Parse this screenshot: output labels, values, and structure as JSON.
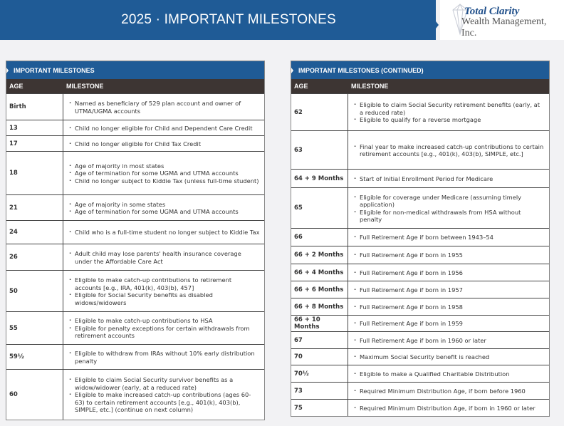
{
  "header": {
    "title": "2025 · IMPORTANT MILESTONES",
    "logo_line1": "Total Clarity",
    "logo_line2": "Wealth Management, Inc."
  },
  "left": {
    "title": "IMPORTANT MILESTONES",
    "col_age": "AGE",
    "col_milestone": "MILESTONE",
    "rows": [
      {
        "age": "Birth",
        "items": [
          "Named as beneficiary of 529 plan account and owner of UTMA/UGMA accounts"
        ]
      },
      {
        "age": "13",
        "items": [
          "Child no longer eligible for Child and Dependent Care Credit"
        ]
      },
      {
        "age": "17",
        "items": [
          "Child no longer eligible for Child Tax Credit"
        ]
      },
      {
        "age": "18",
        "items": [
          "Age of majority in most states",
          "Age of termination for some UGMA and UTMA accounts",
          "Child no longer subject to Kiddie Tax (unless full-time student)"
        ]
      },
      {
        "age": "21",
        "items": [
          "Age of majority in some states",
          "Age of termination for some UGMA and UTMA accounts"
        ]
      },
      {
        "age": "24",
        "items": [
          "Child who is a full-time student no longer subject to Kiddie Tax"
        ]
      },
      {
        "age": "26",
        "items": [
          "Adult child may lose parents' health insurance coverage under the Affordable Care Act"
        ]
      },
      {
        "age": "50",
        "items": [
          "Eligible to make catch-up contributions to retirement accounts [e.g., IRA, 401(k), 403(b), 457]",
          "Eligible for Social Security benefits as disabled widows/widowers"
        ]
      },
      {
        "age": "55",
        "items": [
          "Eligible to make catch-up contributions to HSA",
          "Eligible for penalty exceptions for certain withdrawals from retirement accounts"
        ]
      },
      {
        "age": "59½",
        "items": [
          "Eligible to withdraw from IRAs without 10% early distribution penalty"
        ]
      },
      {
        "age": "60",
        "items": [
          "Eligible to claim Social Security survivor benefits as a widow/widower (early, at a reduced rate)",
          "Eligible to make increased catch-up contributions (ages 60-63) to certain retirement accounts [e.g., 401(k), 403(b), SIMPLE, etc.] (continue on next column)"
        ]
      }
    ]
  },
  "right": {
    "title": "IMPORTANT MILESTONES (CONTINUED)",
    "col_age": "AGE",
    "col_milestone": "MILESTONE",
    "rows": [
      {
        "age": "62",
        "items": [
          "Eligible to claim Social Security retirement benefits (early, at a reduced rate)",
          "Eligible to qualify for a reverse mortgage"
        ]
      },
      {
        "age": "63",
        "items": [
          "Final year to make increased catch-up contributions to certain retirement accounts [e.g., 401(k), 403(b), SIMPLE, etc.]"
        ]
      },
      {
        "age": "64 + 9 Months",
        "items": [
          "Start of Initial Enrollment Period for Medicare"
        ]
      },
      {
        "age": "65",
        "items": [
          "Eligible for coverage under Medicare (assuming timely application)",
          "Eligible for non-medical withdrawals from HSA without penalty"
        ]
      },
      {
        "age": "66",
        "items": [
          "Full Retirement Age if born between 1943–54"
        ]
      },
      {
        "age": "66 + 2 Months",
        "items": [
          "Full Retirement Age if born in 1955"
        ]
      },
      {
        "age": "66 + 4 Months",
        "items": [
          "Full Retirement Age if born in 1956"
        ]
      },
      {
        "age": "66 + 6 Months",
        "items": [
          "Full Retirement Age if born in 1957"
        ]
      },
      {
        "age": "66 + 8 Months",
        "items": [
          "Full Retirement Age if born in 1958"
        ]
      },
      {
        "age": "66 + 10 Months",
        "items": [
          "Full Retirement Age if born in 1959"
        ]
      },
      {
        "age": "67",
        "items": [
          "Full Retirement Age if born in 1960 or later"
        ]
      },
      {
        "age": "70",
        "items": [
          "Maximum Social Security benefit is reached"
        ]
      },
      {
        "age": "70½",
        "items": [
          "Eligible to make a Qualified Charitable Distribution"
        ]
      },
      {
        "age": "73",
        "items": [
          "Required Minimum Distribution Age, if born before 1960"
        ]
      },
      {
        "age": "75",
        "items": [
          "Required Minimum Distribution Age, if born in 1960 or later"
        ]
      }
    ]
  }
}
